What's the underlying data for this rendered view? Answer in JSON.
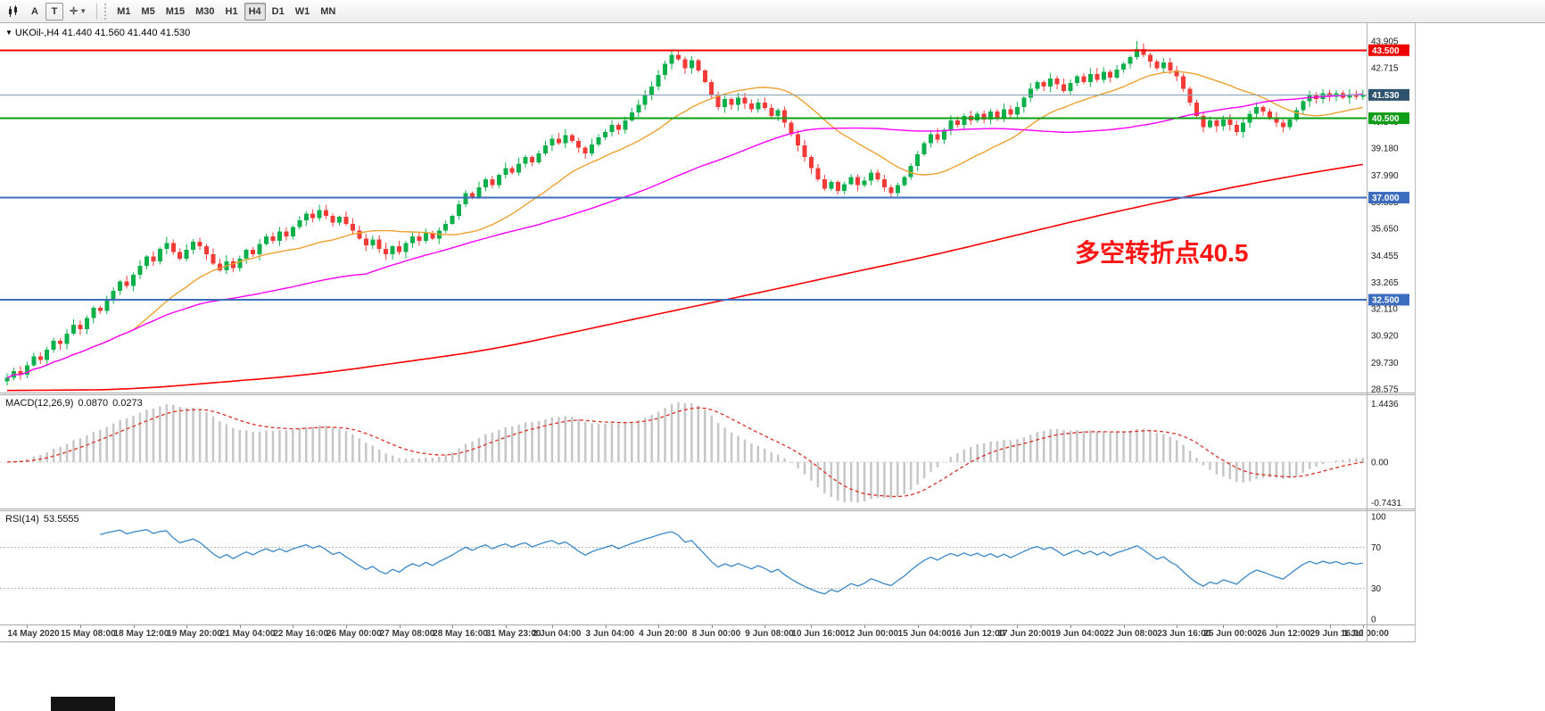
{
  "toolbar": {
    "tool_a": "A",
    "tool_t": "T",
    "timeframes": [
      "M1",
      "M5",
      "M15",
      "M30",
      "H1",
      "H4",
      "D1",
      "W1",
      "MN"
    ],
    "selected_timeframe": "H4"
  },
  "chart": {
    "title_symbol": "UKOil-,H4",
    "title_ohlc": "41.440 41.560 41.440 41.530",
    "annotation": {
      "text": "多空转折点40.5",
      "color": "#ff1414"
    },
    "colors": {
      "candle_up": "#0cb04a",
      "candle_down": "#f23b37",
      "histogram": "#c6c6c6",
      "signal_line": "#d93025",
      "rsi_line": "#3a87c8",
      "level_dash": "#b8b8b8"
    },
    "price_scale_ticks": [
      43.905,
      42.715,
      41.525,
      40.34,
      39.18,
      37.99,
      36.805,
      35.65,
      34.455,
      33.265,
      32.11,
      30.92,
      29.73,
      28.575
    ],
    "price_lines": [
      {
        "price": 43.5,
        "label": "43.500",
        "line": "#ff0000",
        "box": "#ef0000",
        "width": 2
      },
      {
        "price": 41.53,
        "label": "41.530",
        "line": "#7e9fb4",
        "box": "#2d536f",
        "width": 1
      },
      {
        "price": 40.5,
        "label": "40.500",
        "line": "#0aa014",
        "box": "#0f9d18",
        "width": 2
      },
      {
        "price": 37.0,
        "label": "37.000",
        "line": "#3c6cbe",
        "box": "#3c6cbe",
        "width": 2
      },
      {
        "price": 32.5,
        "label": "32.500",
        "line": "#3c6cbe",
        "box": "#3c6cbe",
        "width": 2
      }
    ]
  },
  "chart_data": {
    "type": "candlestick",
    "symbol": "UKOil-",
    "timeframe": "H4",
    "current_ohlc": {
      "open": 41.44,
      "high": 41.56,
      "low": 41.44,
      "close": 41.53
    },
    "bid": 41.53,
    "levels": [
      43.5,
      40.5,
      37.0,
      32.5
    ],
    "y_axis": {
      "min": 28.41,
      "max": 44.69
    },
    "closes": [
      29.05,
      29.35,
      29.2,
      29.6,
      30.0,
      29.85,
      30.3,
      30.7,
      30.55,
      31.0,
      31.4,
      31.2,
      31.7,
      32.15,
      32.0,
      32.5,
      32.9,
      33.3,
      33.1,
      33.6,
      34.0,
      34.4,
      34.2,
      34.75,
      35.0,
      34.6,
      34.3,
      34.7,
      35.05,
      34.85,
      34.5,
      34.1,
      33.8,
      34.2,
      33.9,
      34.3,
      34.7,
      34.5,
      34.95,
      35.3,
      35.1,
      35.5,
      35.3,
      35.7,
      36.0,
      36.3,
      36.1,
      36.45,
      36.2,
      35.9,
      36.15,
      35.85,
      35.55,
      35.2,
      34.9,
      35.15,
      34.75,
      34.5,
      34.85,
      34.6,
      35.0,
      35.3,
      35.1,
      35.45,
      35.2,
      35.55,
      35.85,
      36.2,
      36.7,
      37.2,
      37.0,
      37.45,
      37.8,
      37.55,
      38.0,
      38.3,
      38.1,
      38.5,
      38.8,
      38.55,
      38.95,
      39.3,
      39.6,
      39.4,
      39.75,
      39.5,
      39.2,
      38.95,
      39.35,
      39.65,
      39.9,
      40.2,
      40.0,
      40.4,
      40.75,
      41.1,
      41.5,
      41.9,
      42.4,
      42.9,
      43.3,
      43.1,
      42.7,
      43.05,
      42.6,
      42.1,
      41.5,
      41.0,
      41.35,
      41.1,
      41.4,
      41.15,
      40.9,
      41.2,
      40.95,
      40.6,
      40.85,
      40.3,
      39.8,
      39.3,
      38.8,
      38.3,
      37.8,
      37.4,
      37.7,
      37.3,
      37.6,
      37.9,
      37.55,
      37.75,
      38.1,
      37.8,
      37.45,
      37.2,
      37.55,
      37.9,
      38.4,
      38.9,
      39.4,
      39.8,
      39.55,
      40.0,
      40.4,
      40.2,
      40.6,
      40.4,
      40.7,
      40.45,
      40.8,
      40.55,
      40.9,
      40.65,
      41.0,
      41.4,
      41.8,
      42.1,
      41.9,
      42.25,
      42.0,
      41.7,
      42.05,
      42.35,
      42.1,
      42.45,
      42.2,
      42.55,
      42.3,
      42.65,
      42.9,
      43.2,
      43.55,
      43.3,
      43.0,
      42.7,
      42.95,
      42.6,
      42.35,
      41.8,
      41.2,
      40.6,
      40.1,
      40.4,
      40.15,
      40.45,
      40.2,
      39.9,
      40.3,
      40.7,
      41.0,
      40.8,
      40.55,
      40.3,
      40.1,
      40.45,
      40.85,
      41.25,
      41.55,
      41.35,
      41.6,
      41.45,
      41.6,
      41.4,
      41.55,
      41.44,
      41.53
    ],
    "key_points": {
      "0": {
        "low": 28.72
      },
      "100": {
        "high": 43.52
      },
      "133": {
        "low": 36.96
      },
      "170": {
        "high": 43.905
      }
    },
    "moving_averages": [
      {
        "name": "ma-fast",
        "type": "sma",
        "period": 20,
        "color": "#efa030",
        "width": 1.4
      },
      {
        "name": "ma-mid",
        "type": "sma",
        "period": 55,
        "color": "#ff00ff",
        "width": 1.4
      },
      {
        "name": "ma-slow",
        "type": "waypoints",
        "color": "#ff0000",
        "width": 1.6,
        "points": [
          [
            0,
            28.5
          ],
          [
            12,
            28.55
          ],
          [
            39,
            29.2
          ],
          [
            66,
            30.3
          ],
          [
            93,
            32.0
          ],
          [
            106,
            32.8
          ],
          [
            120,
            33.7
          ],
          [
            133,
            34.5
          ],
          [
            147,
            35.5
          ],
          [
            160,
            36.4
          ],
          [
            173,
            37.2
          ],
          [
            187,
            38.0
          ],
          [
            200,
            38.6
          ],
          [
            204,
            38.8
          ]
        ]
      }
    ],
    "x_axis": {
      "labels": [
        "14 May 2020",
        "15 May 08:00",
        "18 May 12:00",
        "19 May 20:00",
        "21 May 04:00",
        "22 May 16:00",
        "26 May 00:00",
        "27 May 08:00",
        "28 May 16:00",
        "31 May 23:00",
        "2 Jun 04:00",
        "3 Jun 04:00",
        "4 Jun 20:00",
        "8 Jun 00:00",
        "9 Jun 08:00",
        "10 Jun 16:00",
        "12 Jun 00:00",
        "15 Jun 04:00",
        "16 Jun 12:00",
        "17 Jun 20:00",
        "19 Jun 04:00",
        "22 Jun 08:00",
        "23 Jun 16:00",
        "25 Jun 00:00",
        "26 Jun 12:00",
        "29 Jun 16:00",
        "1 Jul 00:00"
      ],
      "indices": [
        3,
        11,
        19,
        27,
        35,
        43,
        51,
        59,
        67,
        75,
        82,
        90,
        98,
        106,
        114,
        121,
        129,
        137,
        145,
        152,
        160,
        168,
        176,
        183,
        191,
        199,
        204
      ]
    }
  },
  "macd": {
    "label": "MACD(12,26,9)",
    "value": "0.0870",
    "signal": "0.0273",
    "scale_top": "1.4436",
    "scale_zero": "0.00",
    "scale_bottom": "-0.7431",
    "params": {
      "fast": 12,
      "slow": 26,
      "signal": 9
    }
  },
  "rsi": {
    "label": "RSI(14)",
    "value": "53.5555",
    "period": 14,
    "levels": [
      70,
      30
    ],
    "scale": [
      "100",
      "70",
      "30",
      "0"
    ]
  }
}
